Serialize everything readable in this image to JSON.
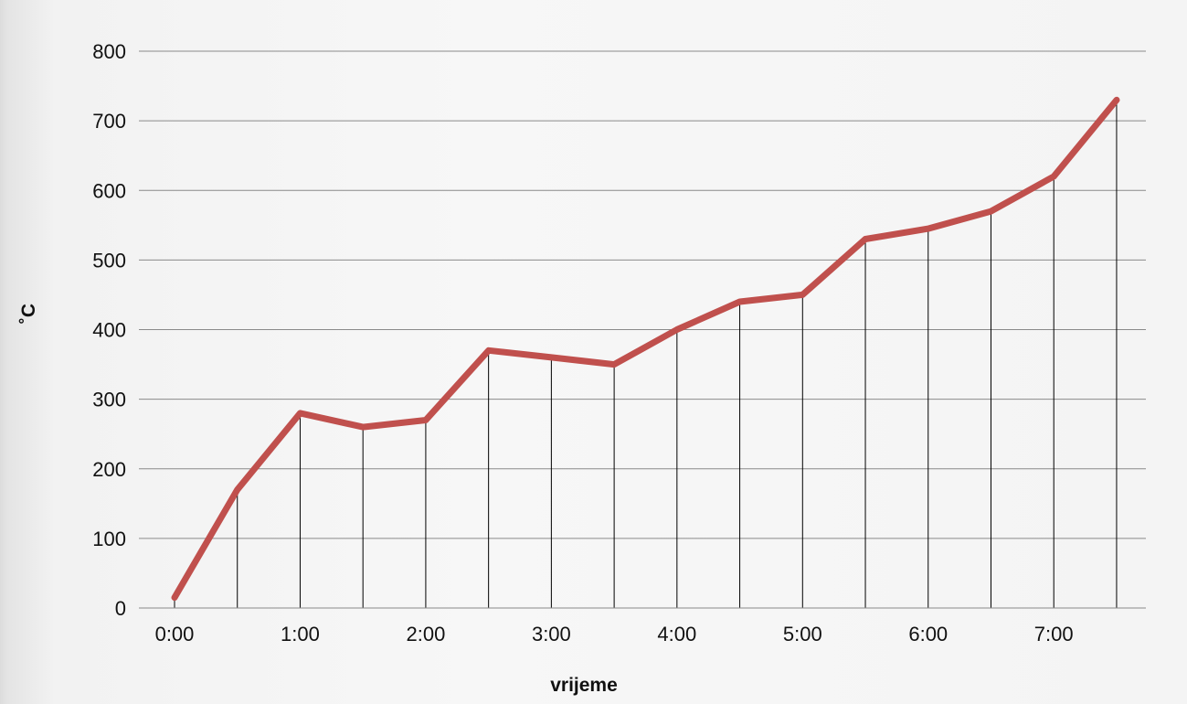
{
  "chart_data": {
    "type": "line",
    "title": "",
    "xlabel": "vrijeme",
    "ylabel": "˚C",
    "x": [
      "0:00",
      "0:30",
      "1:00",
      "1:30",
      "2:00",
      "2:30",
      "3:00",
      "3:30",
      "4:00",
      "4:30",
      "5:00",
      "5:30",
      "6:00",
      "6:30",
      "7:00",
      "7:30"
    ],
    "x_tick_labels": [
      "0:00",
      "1:00",
      "2:00",
      "3:00",
      "4:00",
      "5:00",
      "6:00",
      "7:00"
    ],
    "y_ticks": [
      0,
      100,
      200,
      300,
      400,
      500,
      600,
      700,
      800
    ],
    "ylim": [
      0,
      800
    ],
    "grid": "horizontal",
    "drop_lines": true,
    "series": [
      {
        "values": [
          15,
          170,
          280,
          260,
          270,
          370,
          360,
          350,
          400,
          440,
          450,
          530,
          545,
          570,
          620,
          730
        ],
        "color": "#c0504d"
      }
    ]
  }
}
